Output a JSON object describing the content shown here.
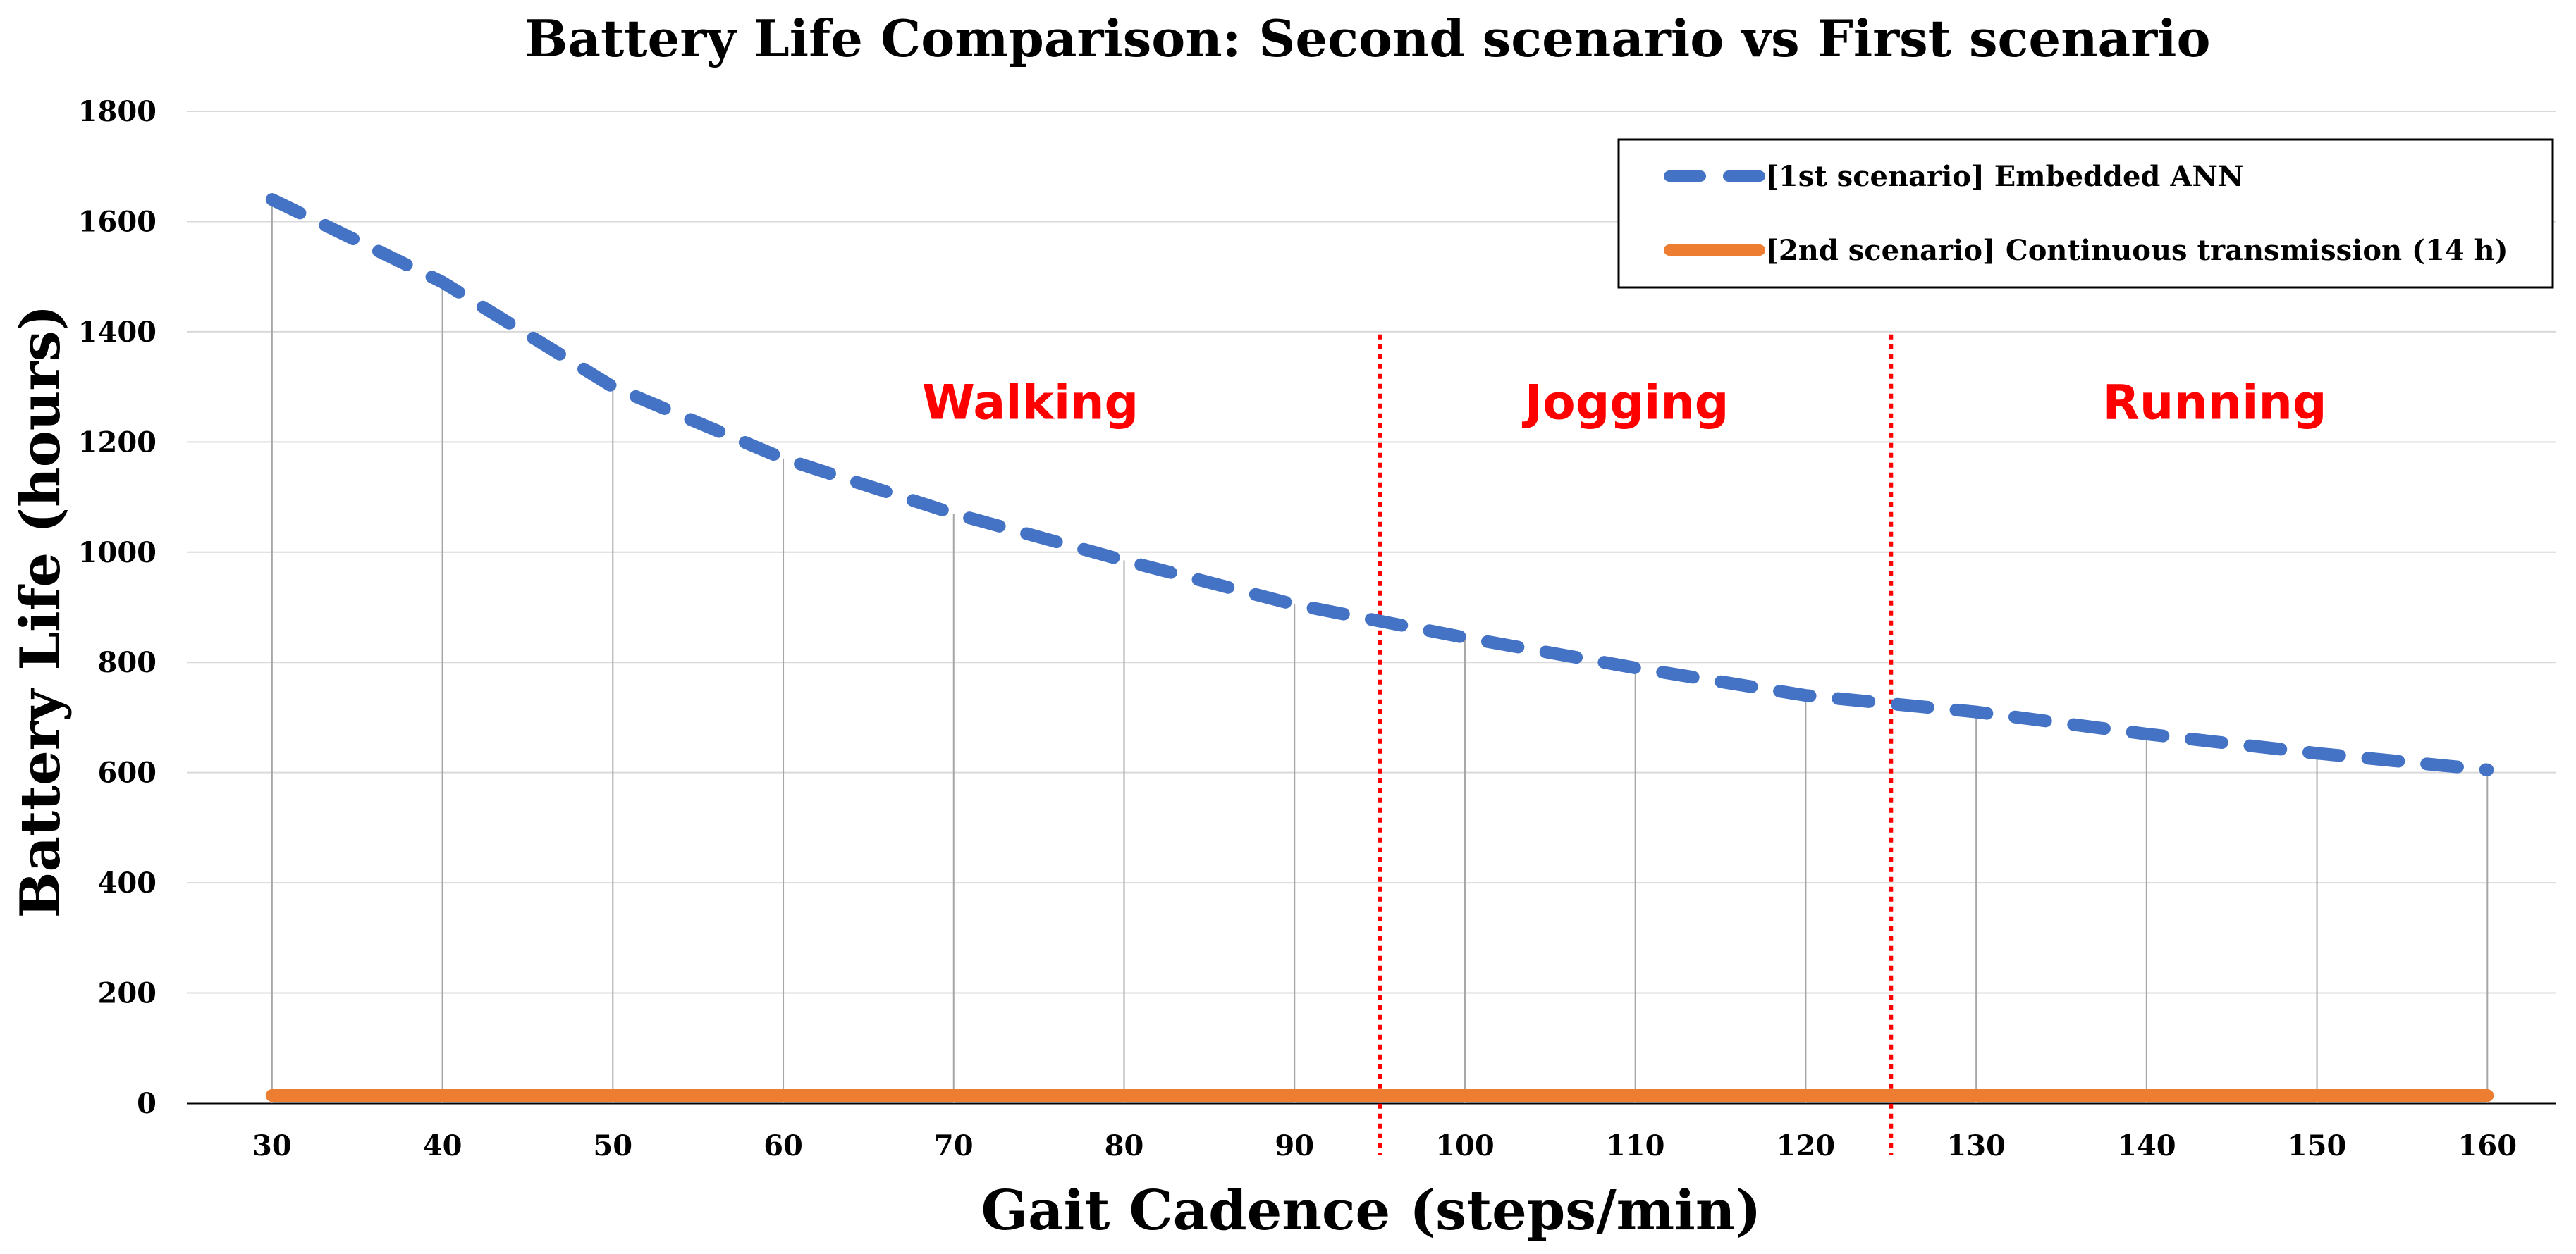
{
  "chart_data": {
    "type": "line",
    "title": "Battery Life Comparison: Second scenario vs First scenario",
    "xlabel": "Gait Cadence (steps/min)",
    "ylabel": "Battery Life (hours)",
    "x": [
      30,
      40,
      50,
      60,
      70,
      80,
      90,
      100,
      110,
      120,
      130,
      140,
      150,
      160
    ],
    "xlim": [
      25,
      164
    ],
    "ylim": [
      0,
      1800
    ],
    "y_ticks": [
      0,
      200,
      400,
      600,
      800,
      1000,
      1200,
      1400,
      1600,
      1800
    ],
    "grid": "horizontal",
    "drop_lines": true,
    "series": [
      {
        "name": "[1st scenario] Embedded ANN",
        "color": "#4472C4",
        "style": "dashed",
        "values": [
          1640,
          1490,
          1300,
          1170,
          1070,
          985,
          905,
          845,
          790,
          740,
          710,
          670,
          635,
          605
        ]
      },
      {
        "name": "[2nd scenario] Continuous transmission (14 h)",
        "color": "#ED7D31",
        "style": "solid",
        "values": [
          14,
          14,
          14,
          14,
          14,
          14,
          14,
          14,
          14,
          14,
          14,
          14,
          14,
          14
        ]
      }
    ],
    "region_boundaries": [
      95,
      125
    ],
    "boundary_color": "#FF0000",
    "regions": [
      {
        "label": "Walking",
        "x_center": 74.5,
        "y": 1270
      },
      {
        "label": "Jogging",
        "x_center": 109.5,
        "y": 1270
      },
      {
        "label": "Running",
        "x_center": 144,
        "y": 1270
      }
    ],
    "legend_position": "top-right"
  }
}
